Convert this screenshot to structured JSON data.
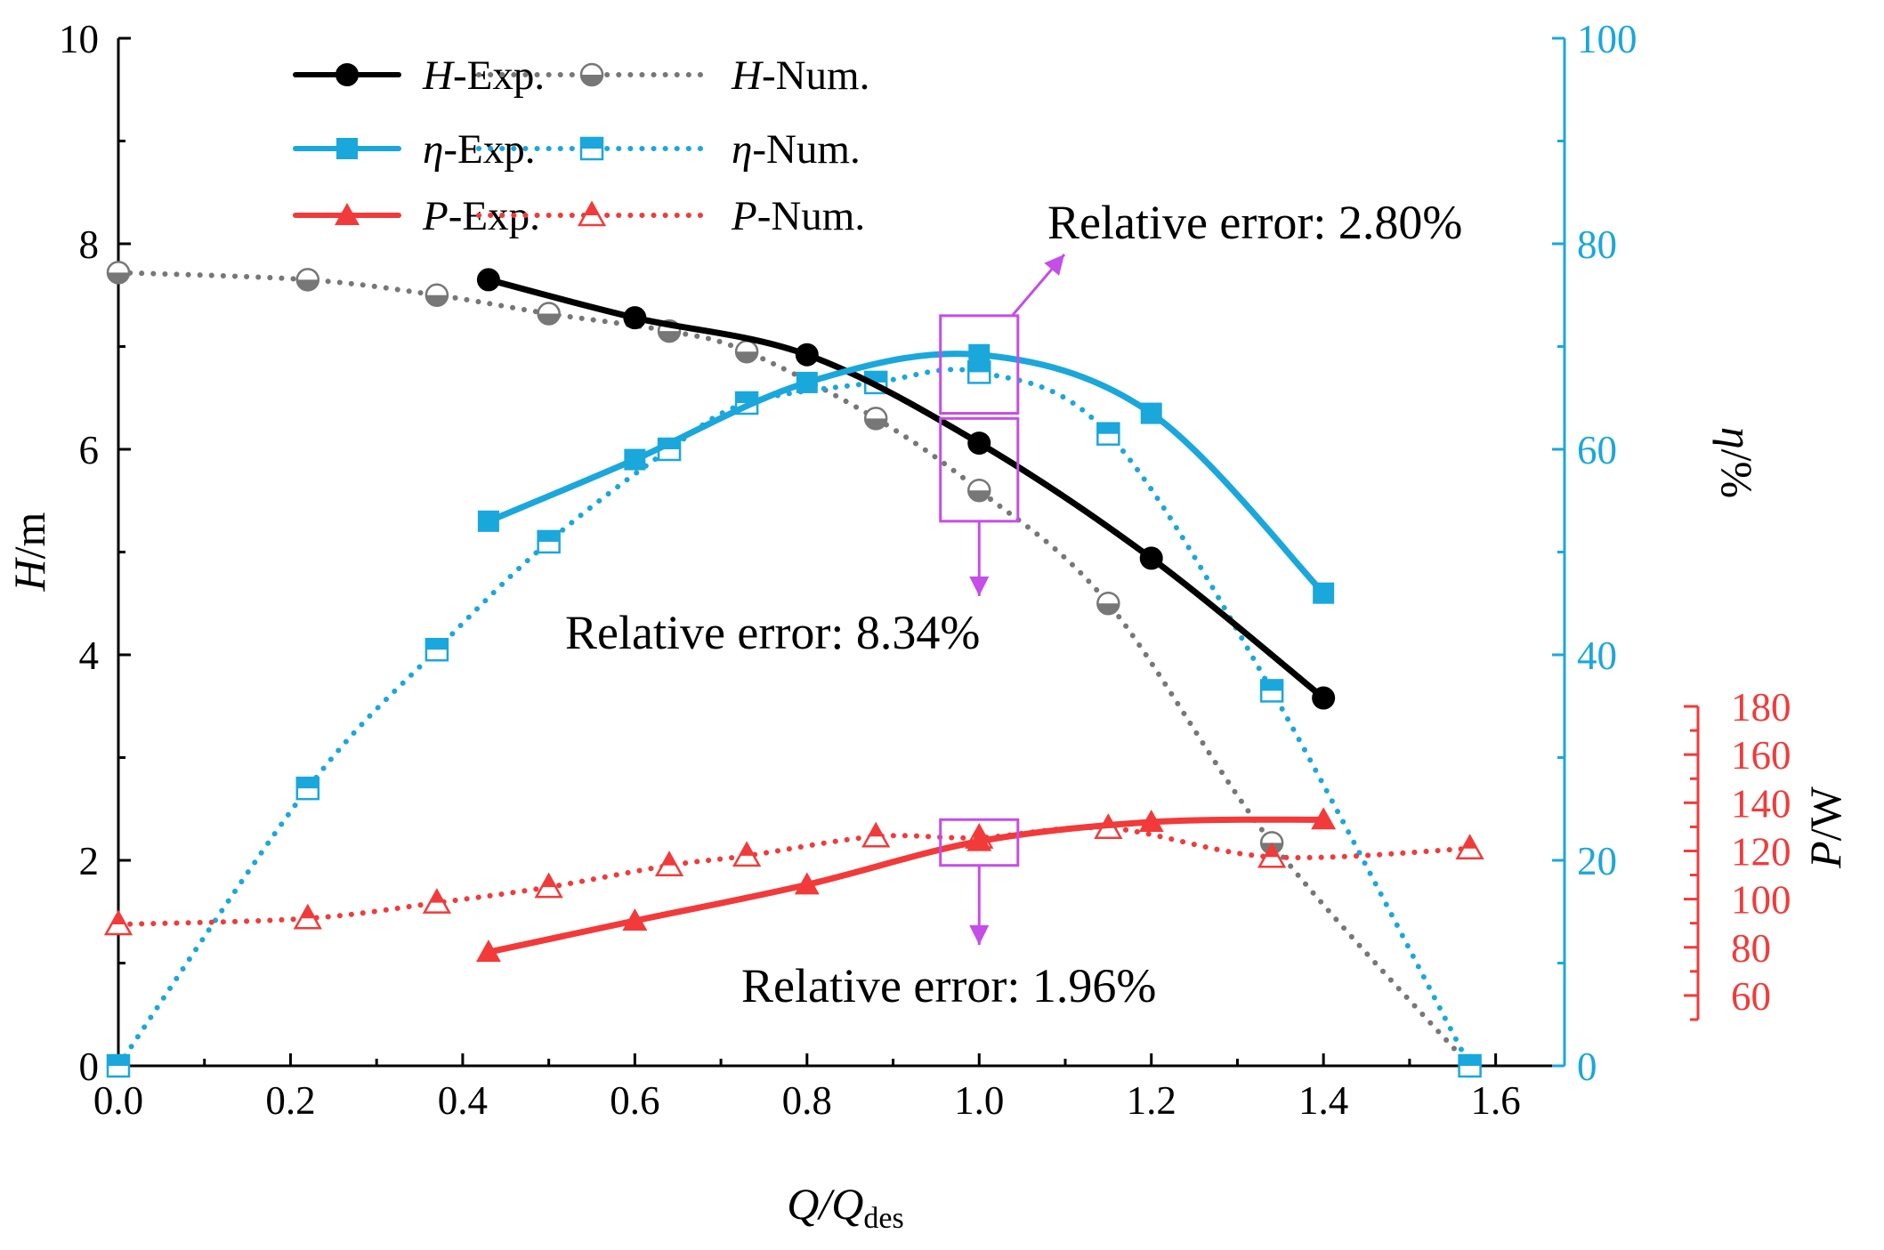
{
  "chart_data": {
    "type": "line",
    "xlabel": "Q/Q",
    "xlabel_sub": "des",
    "xlim": [
      0.0,
      1.68
    ],
    "x_ticks": [
      "0.0",
      "0.2",
      "0.4",
      "0.6",
      "0.8",
      "1.0",
      "1.2",
      "1.4",
      "1.6"
    ],
    "axes": {
      "H": {
        "label": "H",
        "unit": "/m",
        "ylim": [
          0,
          10
        ],
        "ticks": [
          "0",
          "2",
          "4",
          "6",
          "8",
          "10"
        ],
        "color": "#000000"
      },
      "eta": {
        "label": "η",
        "unit": "/%",
        "ylim": [
          0,
          100
        ],
        "ticks": [
          "0",
          "20",
          "40",
          "60",
          "80",
          "100"
        ],
        "color": "#1AA7DC"
      },
      "P": {
        "label": "P",
        "unit": "/W",
        "ylim": [
          50,
          180
        ],
        "ticks": [
          "60",
          "80",
          "100",
          "120",
          "140",
          "160",
          "180"
        ],
        "color": "#F23A3A"
      }
    },
    "series": [
      {
        "name": "H-Exp.",
        "axis": "H",
        "style": "solid",
        "marker": "circle",
        "color": "#000000",
        "x": [
          0.43,
          0.6,
          0.8,
          1.0,
          1.2,
          1.4
        ],
        "y": [
          7.65,
          7.28,
          6.92,
          6.06,
          4.94,
          3.58
        ]
      },
      {
        "name": "H-Num.",
        "axis": "H",
        "style": "dotted",
        "marker": "half-circle",
        "color": "#777777",
        "x": [
          0.0,
          0.22,
          0.37,
          0.5,
          0.64,
          0.73,
          0.88,
          1.0,
          1.15,
          1.34,
          1.57
        ],
        "y": [
          7.72,
          7.65,
          7.5,
          7.32,
          7.15,
          6.95,
          6.3,
          5.6,
          4.5,
          2.17,
          0.0
        ]
      },
      {
        "name": "η-Exp.",
        "axis": "eta",
        "style": "solid",
        "marker": "square",
        "color": "#1AA7DC",
        "x": [
          0.43,
          0.6,
          0.8,
          1.0,
          1.2,
          1.4
        ],
        "y": [
          53,
          59,
          66.5,
          69.2,
          63.5,
          46
        ]
      },
      {
        "name": "η-Num.",
        "axis": "eta",
        "style": "dotted",
        "marker": "half-square",
        "color": "#1AA7DC",
        "x": [
          0.0,
          0.22,
          0.37,
          0.5,
          0.64,
          0.73,
          0.88,
          1.0,
          1.15,
          1.34,
          1.57
        ],
        "y": [
          0,
          27,
          40.5,
          51,
          60,
          64.5,
          66.5,
          67.5,
          61.5,
          36.5,
          0
        ]
      },
      {
        "name": "P-Exp.",
        "axis": "P",
        "style": "solid",
        "marker": "triangle",
        "color": "#F23A3A",
        "x": [
          0.43,
          0.6,
          0.8,
          1.0,
          1.2,
          1.4
        ],
        "y": [
          78,
          91,
          106,
          124,
          132,
          133
        ]
      },
      {
        "name": "P-Num.",
        "axis": "P",
        "style": "dotted",
        "marker": "half-triangle",
        "color": "#F23A3A",
        "x": [
          0.0,
          0.22,
          0.37,
          0.5,
          0.64,
          0.73,
          0.88,
          1.0,
          1.15,
          1.34,
          1.57
        ],
        "y": [
          89.5,
          92,
          98.5,
          105,
          114,
          118,
          126,
          125.5,
          129.5,
          117.5,
          121
        ]
      }
    ],
    "annotations": [
      {
        "text": "Relative error: 2.80%",
        "target_series": "η",
        "at_x": 1.0
      },
      {
        "text": "Relative error: 8.34%",
        "target_series": "H",
        "at_x": 1.0
      },
      {
        "text": "Relative error: 1.96%",
        "target_series": "P",
        "at_x": 1.0
      }
    ],
    "legend": {
      "placement": "top-left",
      "entries": [
        {
          "italic": "H",
          "text": "-Exp."
        },
        {
          "italic": "H",
          "text": "-Num."
        },
        {
          "italic": "η",
          "text": "-Exp."
        },
        {
          "italic": "η",
          "text": "-Num."
        },
        {
          "italic": "P",
          "text": "-Exp."
        },
        {
          "italic": "P",
          "text": "-Num."
        }
      ]
    },
    "highlight_color": "#C54DE8"
  }
}
